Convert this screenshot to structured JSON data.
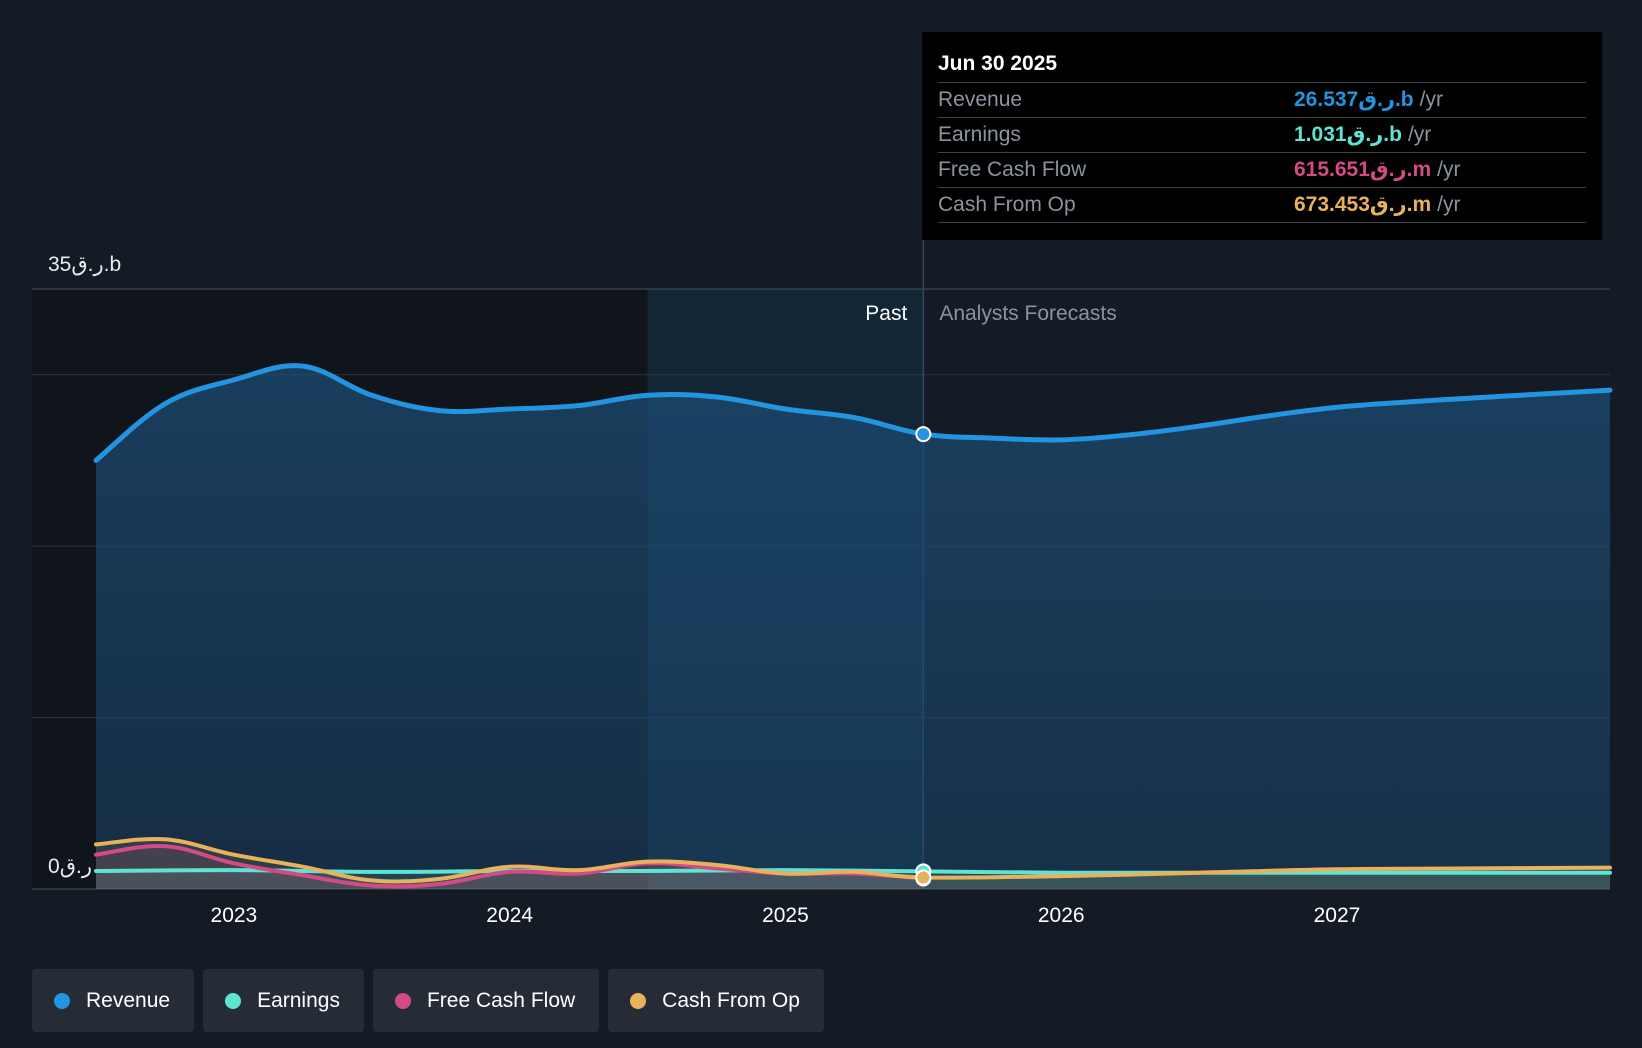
{
  "chart_data": {
    "type": "area",
    "title": "",
    "ylim": [
      0,
      35
    ],
    "y_unit": "ر.ق.b",
    "y_tick_labels": [
      "35ر.ق.b",
      "0ر.ق"
    ],
    "x_tick_labels": [
      "2023",
      "2024",
      "2025",
      "2026",
      "2027"
    ],
    "x_tick_values": [
      2023,
      2024,
      2025,
      2026,
      2027
    ],
    "x_range": [
      2022.5,
      2027.99
    ],
    "past_label": "Past",
    "forecast_label": "Analysts Forecasts",
    "divider_x": 2025.5,
    "highlight_start_x": 2024.5,
    "series": [
      {
        "name": "Revenue",
        "color": "#2394df",
        "filled": true,
        "x": [
          2022.5,
          2022.75,
          2023.0,
          2023.25,
          2023.5,
          2023.75,
          2024.0,
          2024.25,
          2024.5,
          2024.75,
          2025.0,
          2025.25,
          2025.5,
          2025.75,
          2026.0,
          2026.25,
          2026.5,
          2026.75,
          2027.0,
          2027.25,
          2027.5,
          2027.75,
          2027.99
        ],
        "values": [
          25.0,
          28.3,
          29.7,
          30.5,
          28.8,
          27.9,
          28.0,
          28.2,
          28.8,
          28.7,
          28.0,
          27.5,
          26.537,
          26.3,
          26.2,
          26.5,
          27.0,
          27.6,
          28.1,
          28.4,
          28.65,
          28.88,
          29.1
        ]
      },
      {
        "name": "Earnings",
        "color": "#5fe3d3",
        "filled": false,
        "x": [
          2022.5,
          2023.0,
          2023.5,
          2024.0,
          2024.5,
          2025.0,
          2025.5,
          2026.0,
          2026.5,
          2027.0,
          2027.5,
          2027.99
        ],
        "values": [
          1.05,
          1.1,
          1.0,
          1.05,
          1.05,
          1.1,
          1.031,
          0.95,
          0.95,
          0.95,
          0.95,
          0.95
        ]
      },
      {
        "name": "Free Cash Flow",
        "color": "#d34a86",
        "filled": false,
        "x": [
          2022.5,
          2022.75,
          2023.0,
          2023.25,
          2023.5,
          2023.75,
          2024.0,
          2024.25,
          2024.5,
          2024.75,
          2025.0,
          2025.25,
          2025.5
        ],
        "values": [
          2.0,
          2.5,
          1.5,
          0.8,
          0.2,
          0.3,
          1.0,
          0.9,
          1.5,
          1.2,
          0.9,
          0.9,
          0.615651
        ]
      },
      {
        "name": "Cash From Op",
        "color": "#e8b25c",
        "filled": false,
        "x": [
          2022.5,
          2022.75,
          2023.0,
          2023.25,
          2023.5,
          2023.75,
          2024.0,
          2024.25,
          2024.5,
          2024.75,
          2025.0,
          2025.25,
          2025.5,
          2026.0,
          2026.5,
          2027.0,
          2027.5,
          2027.99
        ],
        "values": [
          2.6,
          2.9,
          2.0,
          1.3,
          0.5,
          0.6,
          1.3,
          1.1,
          1.6,
          1.4,
          0.9,
          1.0,
          0.673453,
          0.75,
          0.95,
          1.15,
          1.2,
          1.25
        ]
      }
    ]
  },
  "tooltip": {
    "date": "Jun 30 2025",
    "rows": [
      {
        "label": "Revenue",
        "value": "26.537ر.ق.b",
        "unit": "/yr",
        "color": "#2394df"
      },
      {
        "label": "Earnings",
        "value": "1.031ر.ق.b",
        "unit": "/yr",
        "color": "#5fe3d3"
      },
      {
        "label": "Free Cash Flow",
        "value": "615.651ر.ق.m",
        "unit": "/yr",
        "color": "#d34a86"
      },
      {
        "label": "Cash From Op",
        "value": "673.453ر.ق.m",
        "unit": "/yr",
        "color": "#e8b25c"
      }
    ]
  },
  "legend": [
    {
      "label": "Revenue",
      "color": "#2394df"
    },
    {
      "label": "Earnings",
      "color": "#5fe3d3"
    },
    {
      "label": "Free Cash Flow",
      "color": "#d34a86"
    },
    {
      "label": "Cash From Op",
      "color": "#e8b25c"
    }
  ]
}
